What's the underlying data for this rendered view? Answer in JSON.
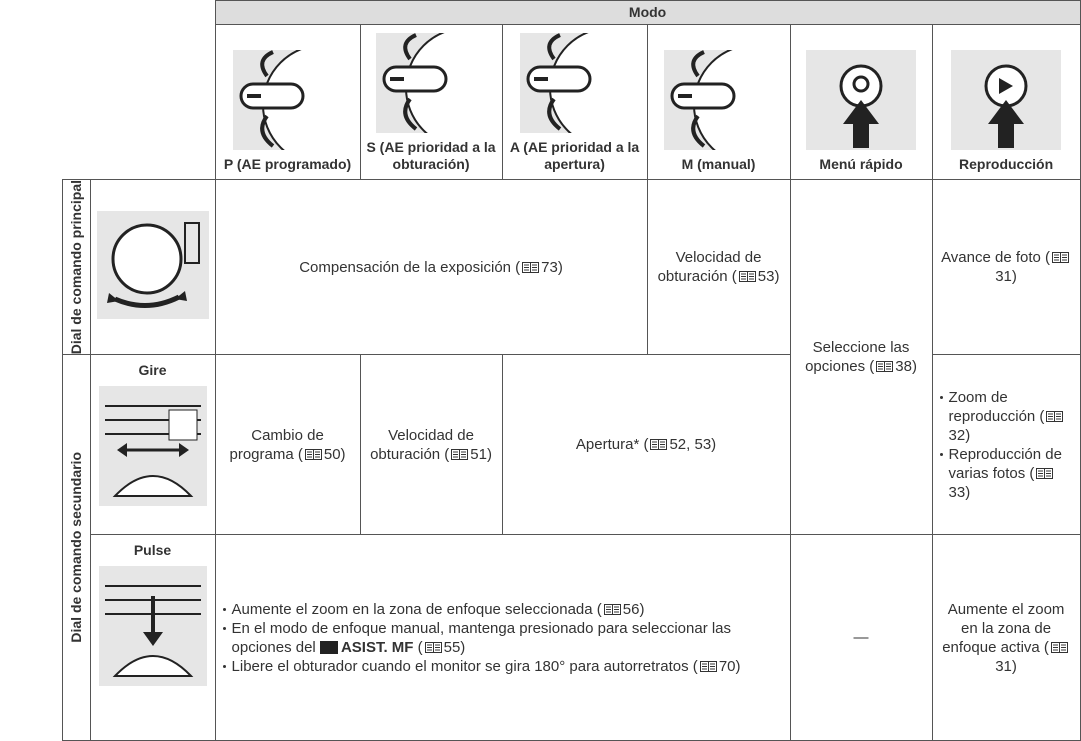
{
  "header": {
    "mode_label": "Modo",
    "modes": [
      "P (AE programado)",
      "S (AE prioridad a la obturación)",
      "A (AE prioridad a la apertura)",
      "M (manual)",
      "Menú rápido",
      "Reproducción"
    ]
  },
  "rows": {
    "principal": {
      "label": "Dial de comando principal",
      "exposure": [
        "Compensación de la exposición (",
        "73)"
      ],
      "shutter": [
        "Velocidad de obturación (",
        "53)"
      ],
      "playback": [
        "Avance de foto (",
        "31)"
      ]
    },
    "quick_menu": [
      "Seleccione las opciones (",
      "38)"
    ],
    "secundario": {
      "label": "Dial de comando secundario",
      "gire": {
        "label": "Gire",
        "program": [
          "Cambio de programa (",
          "50)"
        ],
        "shutter": [
          "Velocidad de obturación (",
          "51)"
        ],
        "aperture": [
          "Apertura* (",
          "52, 53)"
        ],
        "playback": [
          [
            "Zoom de reproducción (",
            "32)"
          ],
          [
            "Reproducción de varias fotos (",
            "33)"
          ]
        ]
      },
      "pulse": {
        "label": "Pulse",
        "bullets": [
          [
            "Aumente el zoom en la zona de enfoque seleccionada (",
            "56)"
          ],
          [
            "En el modo de enfoque manual, mantenga presionado para seleccionar las opciones del ",
            "ASIST. MF",
            " (",
            "55)"
          ],
          [
            "Libere el obturador cuando el monitor se gira 180° para autorretratos (",
            "70)"
          ]
        ],
        "quick_menu": "—",
        "playback": [
          "Aumente el zoom en la zona de enfoque activa (",
          "31)"
        ]
      }
    }
  }
}
